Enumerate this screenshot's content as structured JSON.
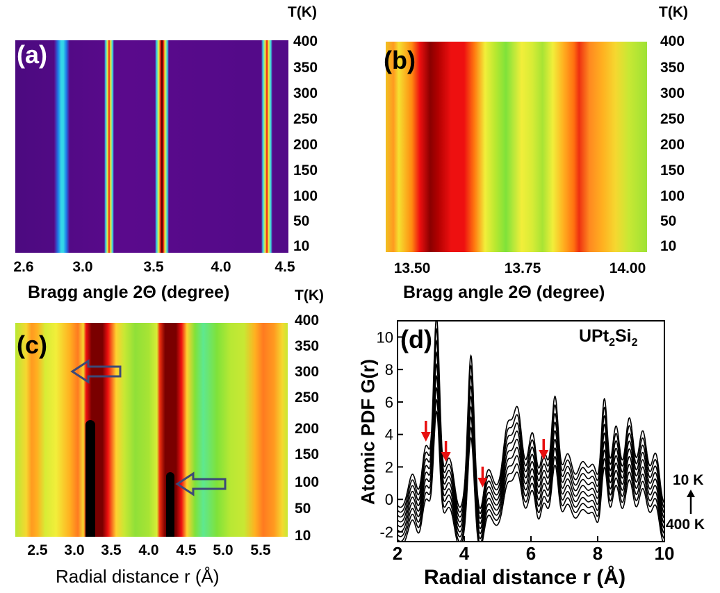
{
  "colors": {
    "purple": "#5a0a8c",
    "green": "#7fe23a",
    "yellow": "#f2ee3a",
    "orange": "#ff9a20",
    "red": "#ee1010",
    "darkred": "#7a0000",
    "black": "#000000",
    "cyan": "#35d6e8",
    "arrow_red": "#e81010",
    "arrow_blue": "#3c4a78"
  },
  "chart_data": [
    {
      "panel": "(a)",
      "type": "heatmap",
      "xlabel": "Bragg angle 2Θ (degree)",
      "ylabel": "T(K)",
      "xlim": [
        2.5,
        4.5
      ],
      "x_ticks": [
        "2.6",
        "3.0",
        "3.5",
        "4.0",
        "4.5"
      ],
      "x_tick_values": [
        2.6,
        3.0,
        3.5,
        4.0,
        4.5
      ],
      "y_ticks": [
        "10",
        "50",
        "100",
        "150",
        "200",
        "250",
        "300",
        "350",
        "400"
      ],
      "y_tick_values": [
        10,
        50,
        100,
        150,
        200,
        250,
        300,
        350,
        400
      ],
      "ylim": [
        0,
        400
      ],
      "peak_positions_deg": [
        2.89,
        3.22,
        3.62,
        4.42
      ],
      "colormap": "purple background with cyan/yellow/red peak stripes"
    },
    {
      "panel": "(b)",
      "type": "heatmap",
      "xlabel": "Bragg angle 2Θ (degree)",
      "ylabel": "T(K)",
      "xlim": [
        13.5,
        14.03
      ],
      "x_ticks": [
        "13.50",
        "13.75",
        "14.00"
      ],
      "x_tick_values": [
        13.5,
        13.75,
        14.0
      ],
      "y_ticks": [
        "10",
        "50",
        "100",
        "150",
        "200",
        "250",
        "300",
        "350",
        "400"
      ],
      "y_tick_values": [
        10,
        50,
        100,
        150,
        200,
        250,
        300,
        350,
        400
      ],
      "ylim": [
        0,
        400
      ],
      "peak_positions_deg": [
        13.6,
        13.92
      ],
      "colormap": "green-yellow-red"
    },
    {
      "panel": "(c)",
      "type": "heatmap",
      "xlabel": "Radial distance r (Å)",
      "ylabel": "T(K)",
      "xlim": [
        2.1,
        5.75
      ],
      "x_ticks": [
        "2.5",
        "3.0",
        "3.5",
        "4.0",
        "4.5",
        "5.0",
        "5.5"
      ],
      "x_tick_values": [
        2.5,
        3.0,
        3.5,
        4.0,
        4.5,
        5.0,
        5.5
      ],
      "y_ticks": [
        "10",
        "50",
        "100",
        "150",
        "200",
        "250",
        "300",
        "350",
        "400"
      ],
      "y_tick_values": [
        10,
        50,
        100,
        150,
        200,
        250,
        300,
        350,
        400
      ],
      "ylim": [
        0,
        400
      ],
      "peak_positions_r": [
        3.15,
        4.2
      ],
      "annotations": [
        "hollow arrow at r≈3.3 Å, T≈310 K",
        "hollow arrow at r≈4.4 Å, T≈95 K"
      ]
    },
    {
      "panel": "(d)",
      "type": "line",
      "title": "UPt2Si2",
      "title_main": "UPt",
      "title_sub1": "2",
      "title_mid": "Si",
      "title_sub2": "2",
      "xlabel": "Radial distance r (Å)",
      "ylabel": "Atomic PDF G(r)",
      "xlim": [
        2,
        10
      ],
      "ylim": [
        -2.6,
        11
      ],
      "x_ticks": [
        "2",
        "4",
        "6",
        "8",
        "10"
      ],
      "x_tick_values": [
        2,
        4,
        6,
        8,
        10
      ],
      "y_ticks": [
        "-2",
        "0",
        "2",
        "4",
        "6",
        "8",
        "10"
      ],
      "y_tick_values": [
        -2,
        0,
        2,
        4,
        6,
        8,
        10
      ],
      "legend_top": "10 K",
      "legend_bottom": "400 K",
      "series_count": 9,
      "series_offset_step": -0.3,
      "peaks": [
        {
          "r": 2.45,
          "h": 1.3,
          "w": 0.12
        },
        {
          "r": 2.85,
          "h": 2.8,
          "w": 0.12
        },
        {
          "r": 3.17,
          "h": 10.5,
          "w": 0.09
        },
        {
          "r": 3.55,
          "h": 2.0,
          "w": 0.13
        },
        {
          "r": 4.2,
          "h": 8.3,
          "w": 0.09
        },
        {
          "r": 4.72,
          "h": 1.3,
          "w": 0.12
        },
        {
          "r": 5.3,
          "h": 3.8,
          "w": 0.13
        },
        {
          "r": 5.6,
          "h": 4.8,
          "w": 0.13
        },
        {
          "r": 6.05,
          "h": 3.6,
          "w": 0.13
        },
        {
          "r": 6.38,
          "h": 2.4,
          "w": 0.11
        },
        {
          "r": 6.72,
          "h": 5.7,
          "w": 0.1
        },
        {
          "r": 7.1,
          "h": 2.2,
          "w": 0.13
        },
        {
          "r": 7.55,
          "h": 1.7,
          "w": 0.14
        },
        {
          "r": 7.9,
          "h": 1.8,
          "w": 0.12
        },
        {
          "r": 8.2,
          "h": 5.6,
          "w": 0.09
        },
        {
          "r": 8.55,
          "h": 3.9,
          "w": 0.11
        },
        {
          "r": 8.95,
          "h": 4.4,
          "w": 0.12
        },
        {
          "r": 9.35,
          "h": 3.6,
          "w": 0.12
        },
        {
          "r": 9.75,
          "h": 2.5,
          "w": 0.12
        }
      ],
      "red_arrows_r": [
        2.85,
        3.45,
        4.55,
        6.38
      ]
    }
  ],
  "panels": {
    "a": {
      "letter": "(a)",
      "unit": "T(K)",
      "xlabel": "Bragg angle 2Θ (degree)"
    },
    "b": {
      "letter": "(b)",
      "unit": "T(K)",
      "xlabel": "Bragg angle 2Θ (degree)"
    },
    "c": {
      "letter": "(c)",
      "unit": "T(K)",
      "xlabel": "Radial distance r (Å)"
    },
    "d": {
      "letter": "(d)",
      "xlabel": "Radial distance r (Å)",
      "ylabel": "Atomic PDF G(r)"
    }
  }
}
